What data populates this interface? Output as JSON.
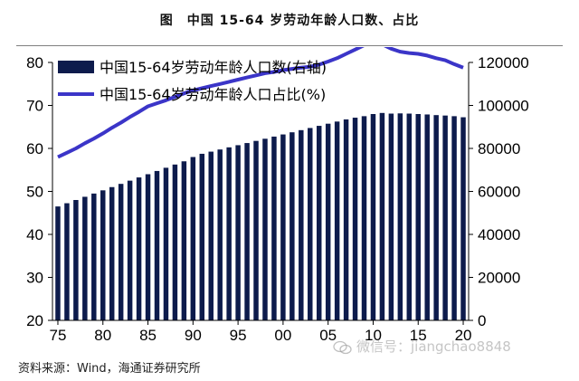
{
  "title": "图　中国 15-64 岁劳动年龄人口数、占比",
  "source": "资料来源：Wind，海通证券研究所",
  "watermark": "微信号：jiangchao8848",
  "colors": {
    "bar": "#0d1b4c",
    "line": "#3b35c8"
  },
  "chart_data": {
    "type": "bar+line",
    "grid": false,
    "legend_position": "top-left",
    "x": [
      "1975",
      "1976",
      "1977",
      "1978",
      "1979",
      "1980",
      "1981",
      "1982",
      "1983",
      "1984",
      "1985",
      "1986",
      "1987",
      "1988",
      "1989",
      "1990",
      "1991",
      "1992",
      "1993",
      "1994",
      "1995",
      "1996",
      "1997",
      "1998",
      "1999",
      "2000",
      "2001",
      "2002",
      "2003",
      "2004",
      "2005",
      "2006",
      "2007",
      "2008",
      "2009",
      "2010",
      "2011",
      "2012",
      "2013",
      "2014",
      "2015",
      "2016",
      "2017",
      "2018",
      "2019",
      "2020"
    ],
    "x_tick_labels": [
      "75",
      "80",
      "85",
      "90",
      "95",
      "00",
      "05",
      "10",
      "15",
      "20"
    ],
    "y_left": {
      "range": [
        20,
        80
      ],
      "ticks": [
        20,
        30,
        40,
        50,
        60,
        70,
        80
      ]
    },
    "y_right": {
      "range": [
        0,
        120000
      ],
      "ticks": [
        "0",
        "20000",
        "40000",
        "60000",
        "80000",
        "100000",
        "120000"
      ]
    },
    "series": [
      {
        "name": "中国15-64岁劳动年龄人口数(右轴)",
        "type": "bar",
        "axis": "right",
        "values": [
          53000,
          54500,
          56000,
          57500,
          59000,
          60500,
          62000,
          63500,
          65000,
          66500,
          68000,
          69500,
          71000,
          72500,
          74000,
          76000,
          77500,
          78500,
          79500,
          80500,
          81500,
          82500,
          83500,
          84500,
          85500,
          86500,
          87500,
          88500,
          89500,
          90500,
          91500,
          92500,
          93500,
          94300,
          95000,
          96000,
          96500,
          96200,
          96300,
          96200,
          96000,
          95800,
          95500,
          95300,
          95000,
          94500
        ]
      },
      {
        "name": "中国15-64岁劳动年龄人口占比(%)",
        "type": "line",
        "axis": "left",
        "values": [
          58.0,
          59.0,
          60.0,
          61.2,
          62.3,
          63.5,
          64.8,
          66.0,
          67.3,
          68.5,
          69.8,
          70.5,
          71.2,
          72.0,
          72.8,
          73.5,
          74.0,
          74.5,
          75.0,
          75.5,
          76.0,
          76.5,
          77.0,
          77.5,
          77.8,
          78.2,
          78.5,
          78.8,
          79.0,
          79.5,
          80.2,
          81.0,
          82.0,
          83.0,
          84.0,
          84.5,
          84.2,
          83.2,
          82.5,
          82.2,
          82.0,
          81.6,
          81.0,
          80.5,
          79.6,
          78.8
        ]
      }
    ]
  }
}
